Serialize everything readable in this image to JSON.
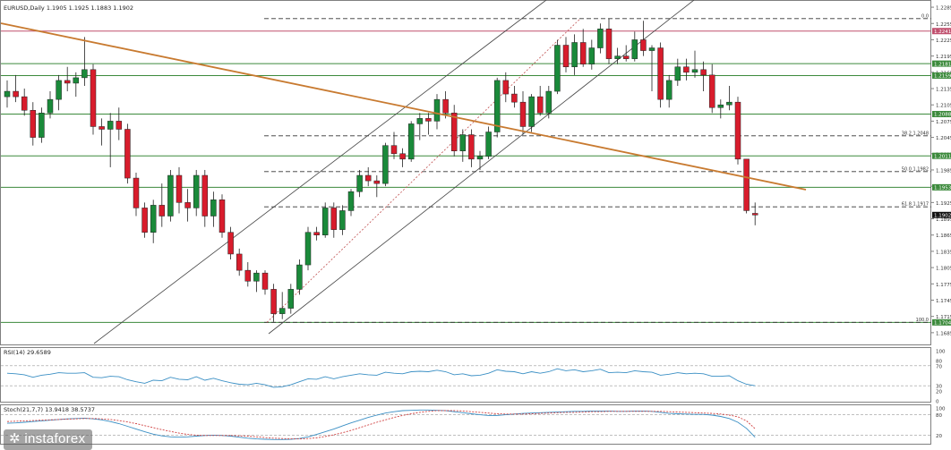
{
  "chart_data": [
    {
      "type": "candlestick",
      "title": "EURUSD,Daily  1.1905 1.1925 1.1883 1.1902",
      "price_scale": {
        "ylim": [
          1.1665,
          1.2295
        ],
        "tick_labels": [
          "1.2285",
          "1.2255",
          "1.2225",
          "1.2195",
          "1.2165",
          "1.2135",
          "1.2105",
          "1.2075",
          "1.2045",
          "1.2015",
          "1.1985",
          "1.1955",
          "1.1925",
          "1.1895",
          "1.1865",
          "1.1835",
          "1.1805",
          "1.1775",
          "1.1745",
          "1.1715",
          "1.1685"
        ]
      },
      "horizontal_levels": [
        {
          "price": 1.2241,
          "label": "1.2241",
          "color": "#c0506e"
        },
        {
          "price": 1.2181,
          "label": "1.2181",
          "color": "#3c8a3c"
        },
        {
          "price": 1.2159,
          "label": "1.2159",
          "color": "#3c8a3c"
        },
        {
          "price": 1.2088,
          "label": "1.2088",
          "color": "#3c8a3c"
        },
        {
          "price": 1.2011,
          "label": "1.2011",
          "color": "#3c8a3c"
        },
        {
          "price": 1.1953,
          "label": "1.1953",
          "color": "#3c8a3c"
        },
        {
          "price": 1.1704,
          "label": "1.1704",
          "color": "#3c8a3c"
        }
      ],
      "fibonacci_levels": [
        {
          "price": 1.2264,
          "label": "0.0"
        },
        {
          "price": 1.2048,
          "label": "38.2 1.2048"
        },
        {
          "price": 1.1982,
          "label": "50.0 1.1982"
        },
        {
          "price": 1.1917,
          "label": "61.8 1.1917"
        },
        {
          "price": 1.1704,
          "label": "100.0"
        }
      ],
      "current_price": {
        "price": 1.1902,
        "label": "1.1902"
      },
      "candles": [
        {
          "o": 1.212,
          "h": 1.215,
          "l": 1.21,
          "c": 1.213
        },
        {
          "o": 1.213,
          "h": 1.216,
          "l": 1.211,
          "c": 1.212
        },
        {
          "o": 1.212,
          "h": 1.2135,
          "l": 1.2085,
          "c": 1.2095
        },
        {
          "o": 1.2095,
          "h": 1.211,
          "l": 1.203,
          "c": 1.2045
        },
        {
          "o": 1.2045,
          "h": 1.21,
          "l": 1.2035,
          "c": 1.209
        },
        {
          "o": 1.209,
          "h": 1.213,
          "l": 1.208,
          "c": 1.2115
        },
        {
          "o": 1.2115,
          "h": 1.216,
          "l": 1.2095,
          "c": 1.215
        },
        {
          "o": 1.215,
          "h": 1.2175,
          "l": 1.213,
          "c": 1.2145
        },
        {
          "o": 1.2145,
          "h": 1.2165,
          "l": 1.212,
          "c": 1.2155
        },
        {
          "o": 1.2155,
          "h": 1.223,
          "l": 1.214,
          "c": 1.217
        },
        {
          "o": 1.217,
          "h": 1.218,
          "l": 1.205,
          "c": 1.2065
        },
        {
          "o": 1.2065,
          "h": 1.208,
          "l": 1.203,
          "c": 1.206
        },
        {
          "o": 1.206,
          "h": 1.209,
          "l": 1.199,
          "c": 1.2075
        },
        {
          "o": 1.2075,
          "h": 1.21,
          "l": 1.204,
          "c": 1.206
        },
        {
          "o": 1.206,
          "h": 1.207,
          "l": 1.196,
          "c": 1.197
        },
        {
          "o": 1.197,
          "h": 1.198,
          "l": 1.19,
          "c": 1.1915
        },
        {
          "o": 1.1915,
          "h": 1.1925,
          "l": 1.186,
          "c": 1.187
        },
        {
          "o": 1.187,
          "h": 1.193,
          "l": 1.185,
          "c": 1.192
        },
        {
          "o": 1.192,
          "h": 1.196,
          "l": 1.188,
          "c": 1.19
        },
        {
          "o": 1.19,
          "h": 1.1985,
          "l": 1.189,
          "c": 1.1975
        },
        {
          "o": 1.1975,
          "h": 1.199,
          "l": 1.1905,
          "c": 1.1925
        },
        {
          "o": 1.1925,
          "h": 1.195,
          "l": 1.189,
          "c": 1.1915
        },
        {
          "o": 1.1915,
          "h": 1.1985,
          "l": 1.19,
          "c": 1.1975
        },
        {
          "o": 1.1975,
          "h": 1.1985,
          "l": 1.188,
          "c": 1.19
        },
        {
          "o": 1.19,
          "h": 1.1945,
          "l": 1.188,
          "c": 1.193
        },
        {
          "o": 1.193,
          "h": 1.194,
          "l": 1.186,
          "c": 1.187
        },
        {
          "o": 1.187,
          "h": 1.188,
          "l": 1.182,
          "c": 1.183
        },
        {
          "o": 1.183,
          "h": 1.184,
          "l": 1.179,
          "c": 1.18
        },
        {
          "o": 1.18,
          "h": 1.1815,
          "l": 1.177,
          "c": 1.178
        },
        {
          "o": 1.178,
          "h": 1.18,
          "l": 1.176,
          "c": 1.1795
        },
        {
          "o": 1.1795,
          "h": 1.18,
          "l": 1.1755,
          "c": 1.1765
        },
        {
          "o": 1.1765,
          "h": 1.1775,
          "l": 1.1705,
          "c": 1.172
        },
        {
          "o": 1.172,
          "h": 1.176,
          "l": 1.171,
          "c": 1.173
        },
        {
          "o": 1.173,
          "h": 1.1775,
          "l": 1.172,
          "c": 1.1765
        },
        {
          "o": 1.1765,
          "h": 1.182,
          "l": 1.1755,
          "c": 1.181
        },
        {
          "o": 1.181,
          "h": 1.188,
          "l": 1.18,
          "c": 1.187
        },
        {
          "o": 1.187,
          "h": 1.188,
          "l": 1.1855,
          "c": 1.1865
        },
        {
          "o": 1.1865,
          "h": 1.1925,
          "l": 1.186,
          "c": 1.1915
        },
        {
          "o": 1.1915,
          "h": 1.1925,
          "l": 1.186,
          "c": 1.1875
        },
        {
          "o": 1.1875,
          "h": 1.192,
          "l": 1.1865,
          "c": 1.191
        },
        {
          "o": 1.191,
          "h": 1.195,
          "l": 1.19,
          "c": 1.1945
        },
        {
          "o": 1.1945,
          "h": 1.1985,
          "l": 1.1935,
          "c": 1.1975
        },
        {
          "o": 1.1975,
          "h": 1.199,
          "l": 1.1955,
          "c": 1.1965
        },
        {
          "o": 1.1965,
          "h": 1.1975,
          "l": 1.1935,
          "c": 1.196
        },
        {
          "o": 1.196,
          "h": 1.2035,
          "l": 1.1955,
          "c": 1.203
        },
        {
          "o": 1.203,
          "h": 1.2055,
          "l": 1.2005,
          "c": 1.2015
        },
        {
          "o": 1.2015,
          "h": 1.2025,
          "l": 1.199,
          "c": 1.2005
        },
        {
          "o": 1.2005,
          "h": 1.2075,
          "l": 1.2,
          "c": 1.207
        },
        {
          "o": 1.207,
          "h": 1.209,
          "l": 1.204,
          "c": 1.208
        },
        {
          "o": 1.208,
          "h": 1.209,
          "l": 1.205,
          "c": 1.2075
        },
        {
          "o": 1.2075,
          "h": 1.2125,
          "l": 1.206,
          "c": 1.2115
        },
        {
          "o": 1.2115,
          "h": 1.213,
          "l": 1.208,
          "c": 1.209
        },
        {
          "o": 1.209,
          "h": 1.2105,
          "l": 1.201,
          "c": 1.202
        },
        {
          "o": 1.202,
          "h": 1.206,
          "l": 1.2,
          "c": 1.205
        },
        {
          "o": 1.205,
          "h": 1.206,
          "l": 1.199,
          "c": 1.2005
        },
        {
          "o": 1.2005,
          "h": 1.202,
          "l": 1.1985,
          "c": 1.201
        },
        {
          "o": 1.201,
          "h": 1.2065,
          "l": 1.2005,
          "c": 1.2055
        },
        {
          "o": 1.2055,
          "h": 1.2155,
          "l": 1.2045,
          "c": 1.215
        },
        {
          "o": 1.215,
          "h": 1.2165,
          "l": 1.211,
          "c": 1.2125
        },
        {
          "o": 1.2125,
          "h": 1.214,
          "l": 1.21,
          "c": 1.211
        },
        {
          "o": 1.211,
          "h": 1.213,
          "l": 1.205,
          "c": 1.2065
        },
        {
          "o": 1.2065,
          "h": 1.2125,
          "l": 1.2055,
          "c": 1.212
        },
        {
          "o": 1.212,
          "h": 1.214,
          "l": 1.2085,
          "c": 1.209
        },
        {
          "o": 1.209,
          "h": 1.214,
          "l": 1.208,
          "c": 1.213
        },
        {
          "o": 1.213,
          "h": 1.2225,
          "l": 1.2125,
          "c": 1.2215
        },
        {
          "o": 1.2215,
          "h": 1.223,
          "l": 1.2165,
          "c": 1.2175
        },
        {
          "o": 1.2175,
          "h": 1.2235,
          "l": 1.216,
          "c": 1.222
        },
        {
          "o": 1.222,
          "h": 1.2245,
          "l": 1.2175,
          "c": 1.218
        },
        {
          "o": 1.218,
          "h": 1.2225,
          "l": 1.217,
          "c": 1.221
        },
        {
          "o": 1.221,
          "h": 1.2255,
          "l": 1.22,
          "c": 1.2245
        },
        {
          "o": 1.2245,
          "h": 1.2264,
          "l": 1.218,
          "c": 1.219
        },
        {
          "o": 1.219,
          "h": 1.221,
          "l": 1.218,
          "c": 1.2195
        },
        {
          "o": 1.2195,
          "h": 1.2215,
          "l": 1.2185,
          "c": 1.219
        },
        {
          "o": 1.219,
          "h": 1.224,
          "l": 1.2185,
          "c": 1.2225
        },
        {
          "o": 1.2225,
          "h": 1.226,
          "l": 1.2195,
          "c": 1.2205
        },
        {
          "o": 1.2205,
          "h": 1.2215,
          "l": 1.213,
          "c": 1.221
        },
        {
          "o": 1.221,
          "h": 1.222,
          "l": 1.21,
          "c": 1.2115
        },
        {
          "o": 1.2115,
          "h": 1.216,
          "l": 1.21,
          "c": 1.215
        },
        {
          "o": 1.215,
          "h": 1.219,
          "l": 1.214,
          "c": 1.2175
        },
        {
          "o": 1.2175,
          "h": 1.219,
          "l": 1.215,
          "c": 1.2165
        },
        {
          "o": 1.2165,
          "h": 1.2205,
          "l": 1.2155,
          "c": 1.217
        },
        {
          "o": 1.217,
          "h": 1.2185,
          "l": 1.213,
          "c": 1.216
        },
        {
          "o": 1.216,
          "h": 1.218,
          "l": 1.209,
          "c": 1.21
        },
        {
          "o": 1.21,
          "h": 1.2115,
          "l": 1.208,
          "c": 1.2105
        },
        {
          "o": 1.2105,
          "h": 1.214,
          "l": 1.2095,
          "c": 1.211
        },
        {
          "o": 1.211,
          "h": 1.212,
          "l": 1.1995,
          "c": 1.2005
        },
        {
          "o": 1.2005,
          "h": 1.2005,
          "l": 1.1905,
          "c": 1.191
        },
        {
          "o": 1.1905,
          "h": 1.1925,
          "l": 1.1883,
          "c": 1.1902
        }
      ]
    },
    {
      "type": "line",
      "title": "RSI(14) 29.6589",
      "ylim": [
        0,
        100
      ],
      "tick_labels": [
        "100",
        "80",
        "70",
        "30",
        "20",
        "0"
      ],
      "levels": [
        70,
        30
      ],
      "series": [
        {
          "color": "#3a8fc4",
          "values": [
            55,
            54,
            52,
            47,
            51,
            53,
            56,
            55,
            55,
            56,
            47,
            46,
            49,
            48,
            42,
            38,
            35,
            41,
            40,
            47,
            43,
            42,
            48,
            41,
            45,
            40,
            36,
            33,
            32,
            35,
            32,
            27,
            28,
            32,
            38,
            44,
            43,
            48,
            44,
            48,
            51,
            54,
            52,
            51,
            57,
            55,
            54,
            58,
            59,
            58,
            61,
            58,
            52,
            54,
            50,
            51,
            55,
            62,
            59,
            58,
            54,
            58,
            55,
            58,
            64,
            60,
            62,
            58,
            60,
            63,
            56,
            57,
            56,
            60,
            58,
            57,
            51,
            53,
            56,
            54,
            55,
            54,
            49,
            49,
            50,
            40,
            33,
            30
          ]
        }
      ]
    },
    {
      "type": "line",
      "title": "Stoch(21,7,7) 13.9418 38.5737",
      "ylim": [
        0,
        100
      ],
      "tick_labels": [
        "100",
        "80",
        "20"
      ],
      "levels": [
        80,
        20
      ],
      "series": [
        {
          "color": "#3a8fc4",
          "values": [
            55,
            56,
            58,
            60,
            62,
            64,
            66,
            68,
            69,
            70,
            68,
            65,
            60,
            54,
            46,
            38,
            30,
            23,
            18,
            15,
            14,
            15,
            17,
            19,
            20,
            19,
            17,
            14,
            11,
            9,
            8,
            7,
            7,
            8,
            10,
            15,
            22,
            30,
            38,
            47,
            56,
            64,
            72,
            79,
            85,
            89,
            92,
            93,
            94,
            94,
            93,
            92,
            89,
            86,
            83,
            80,
            78,
            78,
            80,
            82,
            84,
            85,
            86,
            87,
            88,
            89,
            90,
            90,
            91,
            91,
            91,
            90,
            90,
            91,
            91,
            90,
            87,
            84,
            83,
            82,
            81,
            81,
            79,
            75,
            69,
            58,
            40,
            14
          ]
        },
        {
          "color": "#d04040",
          "dashed": true,
          "values": [
            60,
            61,
            62,
            63,
            64,
            65,
            66,
            67,
            68,
            69,
            69,
            68,
            66,
            63,
            59,
            54,
            48,
            42,
            36,
            31,
            26,
            22,
            20,
            19,
            19,
            19,
            19,
            18,
            17,
            15,
            13,
            11,
            10,
            9,
            9,
            10,
            12,
            16,
            21,
            27,
            34,
            42,
            50,
            58,
            65,
            72,
            78,
            83,
            87,
            90,
            92,
            92,
            92,
            91,
            89,
            87,
            85,
            83,
            82,
            82,
            82,
            83,
            84,
            85,
            86,
            87,
            87,
            88,
            89,
            89,
            90,
            90,
            90,
            90,
            90,
            90,
            90,
            89,
            88,
            87,
            86,
            85,
            84,
            82,
            79,
            74,
            62,
            39
          ]
        }
      ]
    }
  ],
  "watermark": "instaforex"
}
